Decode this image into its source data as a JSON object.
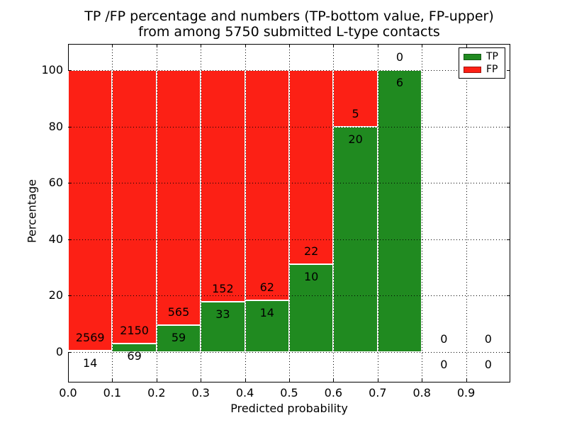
{
  "chart_data": {
    "type": "bar",
    "stacked": true,
    "title_line1": "TP /FP percentage and numbers (TP-bottom value, FP-upper)",
    "title_line2": "from among 5750 submitted L-type contacts",
    "xlabel": "Predicted probability",
    "ylabel": "Percentage",
    "xlim": [
      0.0,
      1.0
    ],
    "ylim": [
      -11,
      109
    ],
    "x_ticks": [
      "0.0",
      "0.1",
      "0.2",
      "0.3",
      "0.4",
      "0.5",
      "0.6",
      "0.7",
      "0.8",
      "0.9"
    ],
    "x_tick_values": [
      0.0,
      0.1,
      0.2,
      0.3,
      0.4,
      0.5,
      0.6,
      0.7,
      0.8,
      0.9
    ],
    "y_ticks": [
      "0",
      "20",
      "40",
      "60",
      "80",
      "100"
    ],
    "y_tick_values": [
      0,
      20,
      40,
      60,
      80,
      100
    ],
    "grid": "dotted",
    "colors": {
      "tp": "#208a20",
      "fp": "#fc2015",
      "bar_edge": "#ffffff",
      "background": "#ffffff"
    },
    "legend": [
      {
        "label": "TP",
        "color": "#208a20"
      },
      {
        "label": "FP",
        "color": "#fc2015"
      }
    ],
    "legend_position": "upper right",
    "bins": [
      {
        "range": [
          0.0,
          0.1
        ],
        "tp": 14,
        "fp": 2569,
        "tp_pct": 0.54
      },
      {
        "range": [
          0.1,
          0.2
        ],
        "tp": 69,
        "fp": 2150,
        "tp_pct": 3.11
      },
      {
        "range": [
          0.2,
          0.3
        ],
        "tp": 59,
        "fp": 565,
        "tp_pct": 9.46
      },
      {
        "range": [
          0.3,
          0.4
        ],
        "tp": 33,
        "fp": 152,
        "tp_pct": 17.84
      },
      {
        "range": [
          0.4,
          0.5
        ],
        "tp": 14,
        "fp": 62,
        "tp_pct": 18.42
      },
      {
        "range": [
          0.5,
          0.6
        ],
        "tp": 10,
        "fp": 22,
        "tp_pct": 31.25
      },
      {
        "range": [
          0.6,
          0.7
        ],
        "tp": 20,
        "fp": 5,
        "tp_pct": 80.0
      },
      {
        "range": [
          0.7,
          0.8
        ],
        "tp": 6,
        "fp": 0,
        "tp_pct": 100.0
      },
      {
        "range": [
          0.8,
          0.9
        ],
        "tp": 0,
        "fp": 0,
        "tp_pct": null
      },
      {
        "range": [
          0.9,
          1.0
        ],
        "tp": 0,
        "fp": 0,
        "tp_pct": null
      }
    ]
  }
}
